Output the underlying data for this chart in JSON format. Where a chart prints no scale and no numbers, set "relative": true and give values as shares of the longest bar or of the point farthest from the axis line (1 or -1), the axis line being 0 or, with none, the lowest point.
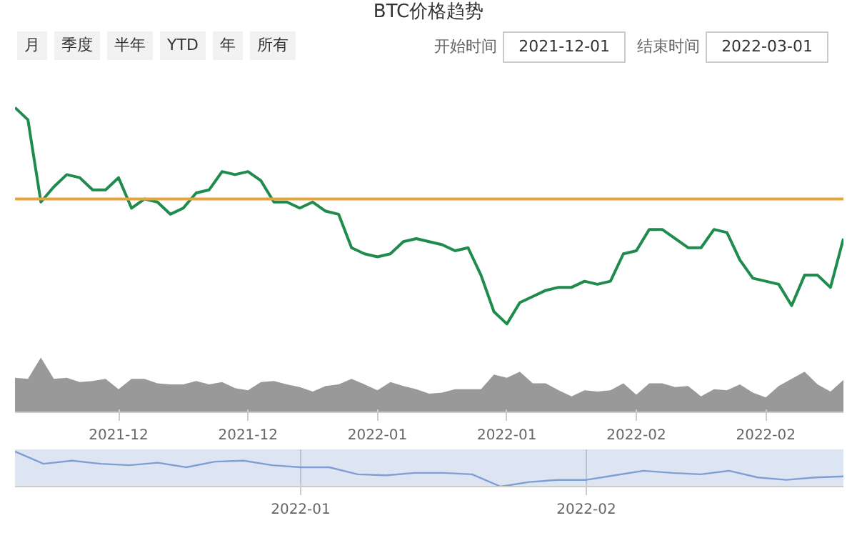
{
  "chart_data": [
    {
      "type": "line",
      "title": "BTC价格趋势",
      "relative": true,
      "tick_labels": "x",
      "grid": false,
      "annotations": [
        "月",
        "季度",
        "半年",
        "YTD",
        "年",
        "所有",
        "开始时间",
        "2021-12-01",
        "结束时间",
        "2022-03-01"
      ],
      "categories": [
        null,
        null,
        null,
        null,
        null,
        null,
        null,
        null,
        "2021-12",
        null,
        null,
        null,
        null,
        null,
        null,
        null,
        null,
        null,
        "2021-12",
        null,
        null,
        null,
        null,
        null,
        null,
        null,
        null,
        null,
        "2022-01",
        null,
        null,
        null,
        null,
        null,
        null,
        null,
        null,
        null,
        "2022-01",
        null,
        null,
        null,
        null,
        null,
        null,
        null,
        null,
        null,
        "2022-02",
        null,
        null,
        null,
        null,
        null,
        null,
        null,
        null,
        null,
        "2022-02",
        null,
        null,
        null,
        null,
        null,
        null
      ],
      "series": [
        {
          "color": "#1f8b4c",
          "values": [
            1.0,
            0.96,
            0.69,
            0.74,
            0.78,
            0.77,
            0.73,
            0.73,
            0.77,
            0.67,
            0.7,
            0.69,
            0.65,
            0.67,
            0.72,
            0.73,
            0.79,
            0.78,
            0.79,
            0.76,
            0.69,
            0.69,
            0.67,
            0.69,
            0.66,
            0.65,
            0.54,
            0.52,
            0.51,
            0.52,
            0.56,
            0.57,
            0.56,
            0.55,
            0.53,
            0.54,
            0.45,
            0.33,
            0.29,
            0.36,
            0.38,
            0.4,
            0.41,
            0.41,
            0.43,
            0.42,
            0.43,
            0.52,
            0.53,
            0.6,
            0.6,
            0.57,
            0.54,
            0.54,
            0.6,
            0.59,
            0.5,
            0.44,
            0.43,
            0.42,
            0.35,
            0.45,
            0.45,
            0.41,
            0.57
          ]
        },
        {
          "type": "area",
          "axis": "y2",
          "color": "#999999",
          "values": [
            0.63,
            0.61,
            1.0,
            0.61,
            0.63,
            0.55,
            0.57,
            0.61,
            0.42,
            0.61,
            0.61,
            0.53,
            0.51,
            0.51,
            0.57,
            0.51,
            0.55,
            0.44,
            0.4,
            0.55,
            0.57,
            0.51,
            0.46,
            0.38,
            0.48,
            0.51,
            0.61,
            0.51,
            0.4,
            0.55,
            0.48,
            0.42,
            0.34,
            0.36,
            0.42,
            0.42,
            0.42,
            0.69,
            0.63,
            0.74,
            0.53,
            0.53,
            0.4,
            0.29,
            0.4,
            0.38,
            0.4,
            0.53,
            0.32,
            0.53,
            0.53,
            0.46,
            0.48,
            0.29,
            0.42,
            0.4,
            0.51,
            0.36,
            0.27,
            0.48,
            0.61,
            0.74,
            0.51,
            0.38,
            0.59
          ]
        }
      ],
      "ref_lines": [
        {
          "axis": "y",
          "value": 0.7,
          "color": "#e8a33c"
        }
      ]
    },
    {
      "type": "line",
      "relative": true,
      "tick_labels": "x",
      "grid": "x",
      "categories": [
        null,
        null,
        null,
        null,
        null,
        null,
        null,
        null,
        null,
        null,
        "2022-01",
        null,
        null,
        null,
        null,
        null,
        null,
        null,
        null,
        null,
        "2022-02",
        null,
        null,
        null,
        null,
        null,
        null,
        null,
        null,
        null
      ],
      "series": [
        {
          "color": "#7f9fd4",
          "values": [
            1.0,
            0.65,
            0.74,
            0.65,
            0.61,
            0.68,
            0.55,
            0.71,
            0.74,
            0.61,
            0.55,
            0.55,
            0.35,
            0.32,
            0.39,
            0.39,
            0.35,
            0.0,
            0.13,
            0.19,
            0.19,
            0.32,
            0.45,
            0.39,
            0.35,
            0.45,
            0.26,
            0.19,
            0.26,
            0.29
          ]
        }
      ]
    }
  ]
}
